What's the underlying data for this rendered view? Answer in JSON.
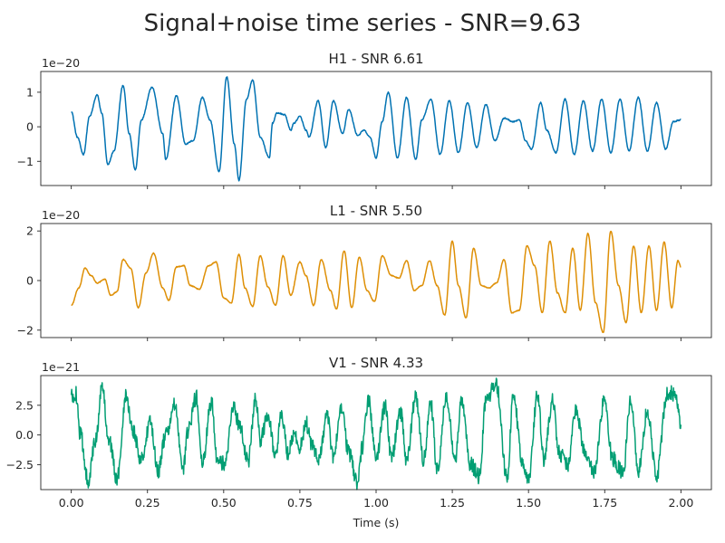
{
  "figure": {
    "title": "Signal+noise time series - SNR=9.63",
    "xlabel": "Time (s)"
  },
  "chart_data": [
    {
      "type": "line",
      "title": "H1 - SNR 6.61",
      "offset_label": "1e−20",
      "color": "#0072b2",
      "xlim": [
        -0.1,
        2.1
      ],
      "ylim": [
        -1.7,
        1.6
      ],
      "yticks": [
        -1,
        0,
        1
      ],
      "ytick_labels": [
        "−1",
        "0",
        "1"
      ],
      "xticks": [
        0.0,
        0.25,
        0.5,
        0.75,
        1.0,
        1.25,
        1.5,
        1.75,
        2.0
      ],
      "xtick_labels": [],
      "noise": 0.02,
      "series": [
        {
          "x": [
            0.0,
            0.02,
            0.04,
            0.06,
            0.085,
            0.1,
            0.12,
            0.14,
            0.17,
            0.19,
            0.21,
            0.23,
            0.265,
            0.3,
            0.31,
            0.345,
            0.375,
            0.4,
            0.43,
            0.455,
            0.485,
            0.51,
            0.535,
            0.55,
            0.575,
            0.595,
            0.62,
            0.65,
            0.66,
            0.675,
            0.7,
            0.72,
            0.73,
            0.75,
            0.77,
            0.78,
            0.81,
            0.835,
            0.86,
            0.89,
            0.91,
            0.94,
            0.96,
            0.98,
            1.0,
            1.02,
            1.04,
            1.07,
            1.1,
            1.13,
            1.15,
            1.18,
            1.21,
            1.24,
            1.27,
            1.3,
            1.33,
            1.36,
            1.39,
            1.42,
            1.45,
            1.47,
            1.49,
            1.51,
            1.54,
            1.56,
            1.59,
            1.62,
            1.65,
            1.68,
            1.71,
            1.74,
            1.77,
            1.8,
            1.83,
            1.86,
            1.89,
            1.92,
            1.95,
            1.975,
            2.0
          ],
          "y": [
            0.45,
            -0.3,
            -0.8,
            0.3,
            0.92,
            0.4,
            -1.1,
            -0.7,
            1.2,
            -0.2,
            -1.25,
            0.2,
            1.15,
            -0.2,
            -0.95,
            0.9,
            -0.5,
            -0.4,
            0.85,
            0.2,
            -1.3,
            1.45,
            -0.5,
            -1.55,
            0.8,
            1.35,
            -0.3,
            -0.9,
            0.1,
            0.4,
            0.35,
            -0.1,
            0.1,
            0.3,
            -0.1,
            -0.3,
            0.75,
            -0.6,
            0.75,
            -0.2,
            0.5,
            -0.25,
            -0.1,
            -0.3,
            -0.9,
            0.15,
            1.0,
            -0.9,
            0.85,
            -0.95,
            0.2,
            0.8,
            -0.8,
            0.75,
            -0.75,
            0.7,
            -0.6,
            0.65,
            -0.4,
            0.25,
            0.15,
            0.2,
            -0.4,
            -0.65,
            0.7,
            -0.1,
            -0.75,
            0.8,
            -0.8,
            0.75,
            -0.7,
            0.8,
            -0.75,
            0.8,
            -0.7,
            0.85,
            -0.7,
            0.7,
            -0.65,
            0.15,
            0.2
          ]
        }
      ]
    },
    {
      "type": "line",
      "title": "L1 - SNR 5.50",
      "offset_label": "1e−20",
      "color": "#de8f05",
      "xlim": [
        -0.1,
        2.1
      ],
      "ylim": [
        -2.3,
        2.3
      ],
      "yticks": [
        -2,
        0,
        2
      ],
      "ytick_labels": [
        "−2",
        "0",
        "2"
      ],
      "xticks": [
        0.0,
        0.25,
        0.5,
        0.75,
        1.0,
        1.25,
        1.5,
        1.75,
        2.0
      ],
      "xtick_labels": [],
      "noise": 0.015,
      "series": [
        {
          "x": [
            0.0,
            0.025,
            0.045,
            0.065,
            0.085,
            0.11,
            0.13,
            0.15,
            0.17,
            0.195,
            0.22,
            0.245,
            0.27,
            0.3,
            0.32,
            0.345,
            0.37,
            0.39,
            0.42,
            0.45,
            0.475,
            0.5,
            0.525,
            0.55,
            0.57,
            0.595,
            0.62,
            0.645,
            0.67,
            0.695,
            0.72,
            0.75,
            0.77,
            0.795,
            0.82,
            0.85,
            0.87,
            0.895,
            0.92,
            0.945,
            0.97,
            0.995,
            1.02,
            1.05,
            1.075,
            1.1,
            1.125,
            1.15,
            1.175,
            1.2,
            1.225,
            1.25,
            1.27,
            1.295,
            1.32,
            1.345,
            1.37,
            1.395,
            1.42,
            1.445,
            1.47,
            1.495,
            1.52,
            1.545,
            1.57,
            1.595,
            1.62,
            1.645,
            1.67,
            1.695,
            1.72,
            1.745,
            1.77,
            1.795,
            1.82,
            1.845,
            1.87,
            1.895,
            1.92,
            1.945,
            1.97,
            1.99,
            2.0
          ],
          "y": [
            -1.0,
            -0.3,
            0.5,
            0.2,
            -0.1,
            0.05,
            -0.6,
            -0.45,
            0.85,
            0.5,
            -1.1,
            0.3,
            1.1,
            -0.3,
            -0.8,
            0.55,
            0.6,
            -0.2,
            -0.35,
            0.6,
            0.75,
            -0.7,
            -0.9,
            1.05,
            -0.3,
            -1.05,
            1.0,
            -0.25,
            -1.0,
            1.0,
            -0.6,
            0.75,
            0.2,
            -1.0,
            0.85,
            -0.4,
            -1.15,
            1.2,
            -1.1,
            0.95,
            -0.4,
            -0.85,
            1.0,
            0.2,
            0.1,
            0.8,
            -0.4,
            -0.2,
            0.8,
            -0.2,
            -1.4,
            1.6,
            -0.2,
            -1.5,
            1.3,
            -0.2,
            -0.3,
            -0.1,
            0.85,
            -1.3,
            -1.2,
            1.4,
            0.6,
            -1.3,
            1.6,
            -0.5,
            -1.3,
            1.3,
            -1.2,
            1.9,
            -0.9,
            -2.1,
            2.0,
            -0.2,
            -1.7,
            1.4,
            -1.3,
            1.4,
            -1.2,
            1.55,
            -1.1,
            0.8,
            0.55
          ]
        }
      ]
    },
    {
      "type": "line",
      "title": "V1 - SNR 4.33",
      "offset_label": "1e−21",
      "color": "#029e73",
      "xlim": [
        -0.1,
        2.1
      ],
      "ylim": [
        -4.6,
        5.0
      ],
      "yticks": [
        -2.5,
        0.0,
        2.5
      ],
      "ytick_labels": [
        "−2.5",
        "0.0",
        "2.5"
      ],
      "xticks": [
        0.0,
        0.25,
        0.5,
        0.75,
        1.0,
        1.25,
        1.5,
        1.75,
        2.0
      ],
      "xtick_labels": [
        "0.00",
        "0.25",
        "0.50",
        "0.75",
        "1.00",
        "1.25",
        "1.50",
        "1.75",
        "2.00"
      ],
      "noise": 0.28,
      "series": [
        {
          "x": [
            0.0,
            0.015,
            0.03,
            0.055,
            0.08,
            0.1,
            0.125,
            0.15,
            0.18,
            0.2,
            0.23,
            0.26,
            0.285,
            0.31,
            0.34,
            0.365,
            0.385,
            0.41,
            0.43,
            0.46,
            0.48,
            0.505,
            0.53,
            0.55,
            0.58,
            0.605,
            0.62,
            0.645,
            0.67,
            0.69,
            0.71,
            0.73,
            0.75,
            0.77,
            0.79,
            0.81,
            0.84,
            0.86,
            0.885,
            0.91,
            0.94,
            0.955,
            0.975,
            1.0,
            1.03,
            1.05,
            1.08,
            1.1,
            1.13,
            1.155,
            1.18,
            1.2,
            1.23,
            1.26,
            1.28,
            1.31,
            1.34,
            1.36,
            1.395,
            1.43,
            1.45,
            1.48,
            1.5,
            1.53,
            1.55,
            1.58,
            1.6,
            1.63,
            1.655,
            1.69,
            1.715,
            1.75,
            1.775,
            1.81,
            1.835,
            1.86,
            1.89,
            1.92,
            1.955,
            1.98,
            2.0
          ],
          "y": [
            3.2,
            3.5,
            0.0,
            -3.8,
            -0.5,
            4.0,
            -0.5,
            -3.8,
            3.5,
            0.5,
            -2.0,
            1.0,
            -3.0,
            0.0,
            2.5,
            -3.0,
            0.5,
            3.2,
            -2.5,
            2.8,
            -2.2,
            -2.5,
            2.5,
            1.0,
            -2.2,
            3.0,
            -0.5,
            1.8,
            -1.8,
            1.8,
            -1.5,
            0.0,
            -1.0,
            1.0,
            -1.0,
            -2.0,
            1.5,
            -2.0,
            2.5,
            -1.5,
            -4.0,
            -1.0,
            3.0,
            -2.0,
            2.5,
            -2.0,
            2.0,
            -2.2,
            3.2,
            -2.0,
            2.5,
            -3.0,
            3.0,
            -2.0,
            2.8,
            -2.5,
            -3.5,
            3.0,
            4.2,
            -3.8,
            3.5,
            -2.5,
            -3.5,
            3.5,
            -2.0,
            3.0,
            -1.5,
            -2.5,
            2.0,
            -2.0,
            -3.0,
            3.0,
            -2.0,
            -3.2,
            3.0,
            -3.0,
            2.0,
            -3.5,
            3.5,
            3.5,
            0.8
          ]
        }
      ]
    }
  ]
}
